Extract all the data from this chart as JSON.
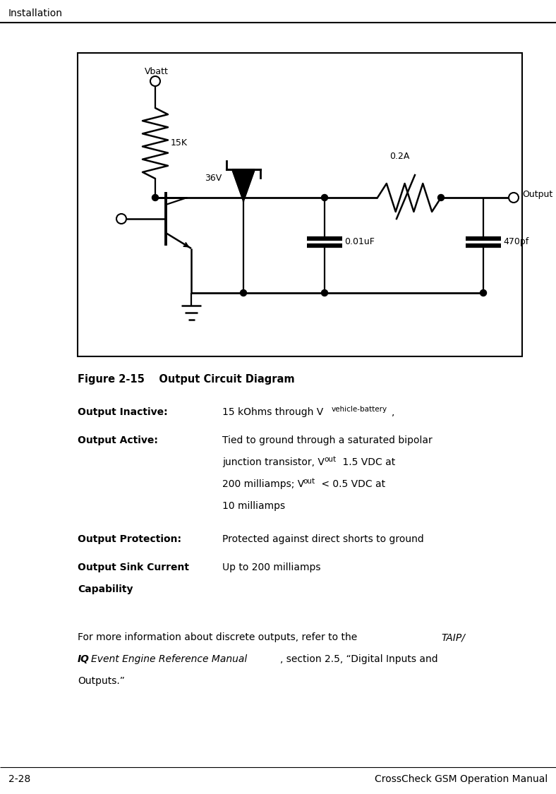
{
  "page_title": "Installation",
  "page_footer_left": "2-28",
  "page_footer_right": "CrossCheck GSM Operation Manual",
  "bg_color": "#ffffff",
  "text_color": "#000000",
  "line_color": "#000000",
  "fig_width": 7.88,
  "fig_height": 11.25,
  "dpi": 100
}
